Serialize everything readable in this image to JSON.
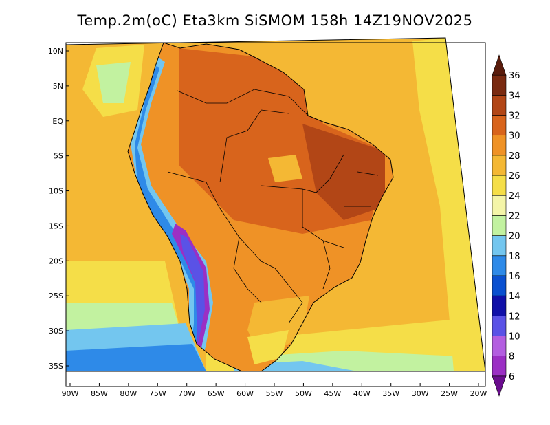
{
  "title": "Temp.2m(oC) Eta3km SiSMOM 158h 14Z19NOV2025",
  "chart_data": {
    "type": "heatmap",
    "variable": "2m temperature",
    "unit": "oC",
    "lon_ticks": [
      "90W",
      "85W",
      "80W",
      "75W",
      "70W",
      "65W",
      "60W",
      "55W",
      "50W",
      "45W",
      "40W",
      "35W",
      "30W",
      "25W",
      "20W"
    ],
    "lat_ticks": [
      "10N",
      "5N",
      "EQ",
      "5S",
      "10S",
      "15S",
      "20S",
      "25S",
      "30S",
      "35S"
    ],
    "colorbar": {
      "levels": [
        6,
        8,
        10,
        12,
        14,
        16,
        18,
        20,
        22,
        24,
        26,
        28,
        30,
        32,
        34,
        36
      ],
      "colors": [
        "#6a0d8e",
        "#9b2fc4",
        "#b35ee0",
        "#5a52e6",
        "#1010a8",
        "#0a50d0",
        "#2e8ae8",
        "#73c6ef",
        "#c2f2a0",
        "#f4f5a8",
        "#f5de48",
        "#f4b834",
        "#ef9226",
        "#d8641c",
        "#b24616",
        "#7a2a10",
        "#5a1c0c"
      ],
      "extend": "both"
    }
  }
}
